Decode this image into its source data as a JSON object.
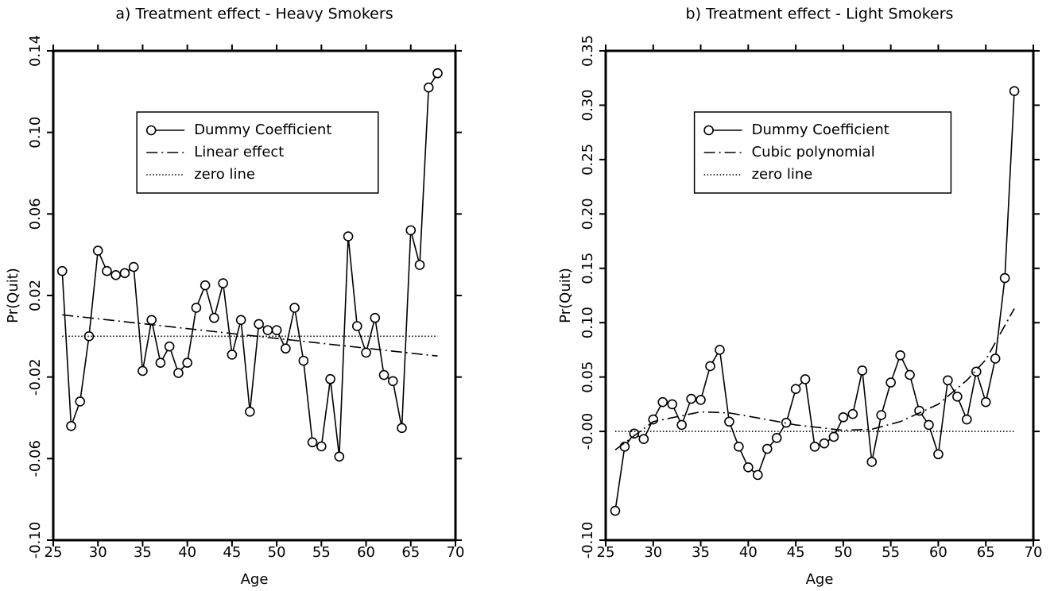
{
  "chart_data": [
    {
      "type": "line",
      "title": "a) Treatment effect - Heavy Smokers",
      "x_label": "Age",
      "y_label": "Pr(Quit)",
      "xlim": [
        25,
        70
      ],
      "xticks": [
        25,
        30,
        35,
        40,
        45,
        50,
        55,
        60,
        65,
        70
      ],
      "ylim": [
        -0.1,
        0.14
      ],
      "yticks": [
        {
          "value": -0.1,
          "label": "-0.10"
        },
        -0.06,
        -0.02,
        0.02,
        0.06,
        {
          "value": 0.1,
          "label": "0.10"
        },
        0.14
      ],
      "legend": "upper center",
      "series": [
        {
          "name": "Dummy Coefficient",
          "color": "#000000",
          "style": "solid-markers",
          "x": [
            26,
            27,
            28,
            29,
            30,
            31,
            32,
            33,
            34,
            35,
            36,
            37,
            38,
            39,
            40,
            41,
            42,
            43,
            44,
            45,
            46,
            47,
            48,
            49,
            50,
            51,
            52,
            53,
            54,
            55,
            56,
            57,
            58,
            59,
            60,
            61,
            62,
            63,
            64,
            65,
            66,
            67,
            68
          ],
          "values": [
            0.032,
            -0.044,
            -0.032,
            0.0,
            0.042,
            0.032,
            0.03,
            0.031,
            0.034,
            -0.017,
            0.008,
            -0.013,
            -0.005,
            -0.018,
            -0.013,
            0.014,
            0.025,
            0.009,
            0.026,
            -0.009,
            0.008,
            -0.037,
            0.006,
            0.003,
            0.003,
            -0.006,
            0.014,
            -0.012,
            -0.052,
            -0.054,
            -0.021,
            -0.059,
            0.049,
            0.005,
            -0.008,
            0.009,
            -0.019,
            -0.022,
            -0.045,
            0.052,
            0.035,
            0.122,
            0.129
          ]
        },
        {
          "name": "Linear effect",
          "color": "#000000",
          "style": "dashdot",
          "x": [
            26,
            68
          ],
          "values": [
            0.0105,
            -0.0097
          ]
        },
        {
          "name": "zero line",
          "color": "#000000",
          "style": "dotted",
          "x": [
            26,
            68
          ],
          "values": [
            0,
            0
          ]
        }
      ]
    },
    {
      "type": "line",
      "title": "b) Treatment effect - Light Smokers",
      "x_label": "Age",
      "y_label": "Pr(Quit)",
      "xlim": [
        25,
        70
      ],
      "xticks": [
        25,
        30,
        35,
        40,
        45,
        50,
        55,
        60,
        65,
        70
      ],
      "ylim": [
        -0.1,
        0.35
      ],
      "yticks": [
        {
          "value": -0.1,
          "label": "-0.10"
        },
        {
          "value": 0,
          "label": "-0.00"
        },
        0.05,
        {
          "value": 0.1,
          "label": "0.10"
        },
        0.15,
        {
          "value": 0.2,
          "label": "0.20"
        },
        0.25,
        {
          "value": 0.3,
          "label": "0.30"
        },
        0.35
      ],
      "legend": "upper center",
      "series": [
        {
          "name": "Dummy Coefficient",
          "color": "#000000",
          "style": "solid-markers",
          "x": [
            26,
            27,
            28,
            29,
            30,
            31,
            32,
            33,
            34,
            35,
            36,
            37,
            38,
            39,
            40,
            41,
            42,
            43,
            44,
            45,
            46,
            47,
            48,
            49,
            50,
            51,
            52,
            53,
            54,
            55,
            56,
            57,
            58,
            59,
            60,
            61,
            62,
            63,
            64,
            65,
            66,
            67,
            68
          ],
          "values": [
            -0.073,
            -0.014,
            -0.002,
            -0.007,
            0.011,
            0.027,
            0.025,
            0.006,
            0.03,
            0.029,
            0.06,
            0.075,
            0.009,
            -0.014,
            -0.033,
            -0.04,
            -0.016,
            -0.006,
            0.008,
            0.039,
            0.048,
            -0.014,
            -0.011,
            -0.005,
            0.013,
            0.016,
            0.056,
            -0.028,
            0.015,
            0.045,
            0.07,
            0.052,
            0.019,
            0.006,
            -0.021,
            0.047,
            0.032,
            0.011,
            0.055,
            0.027,
            0.067,
            0.141,
            0.313
          ]
        },
        {
          "name": "Cubic polynomial",
          "color": "#000000",
          "style": "dashdot",
          "x": [
            26,
            30,
            35,
            38,
            40,
            45,
            50,
            53,
            56,
            60,
            63,
            65,
            68
          ],
          "values": [
            -0.017,
            0.009,
            0.018,
            0.017,
            0.014,
            0.006,
            0.001,
            0.002,
            0.009,
            0.025,
            0.047,
            0.066,
            0.113
          ]
        },
        {
          "name": "zero line",
          "color": "#000000",
          "style": "dotted",
          "x": [
            26,
            68
          ],
          "values": [
            0,
            0
          ]
        }
      ]
    }
  ]
}
